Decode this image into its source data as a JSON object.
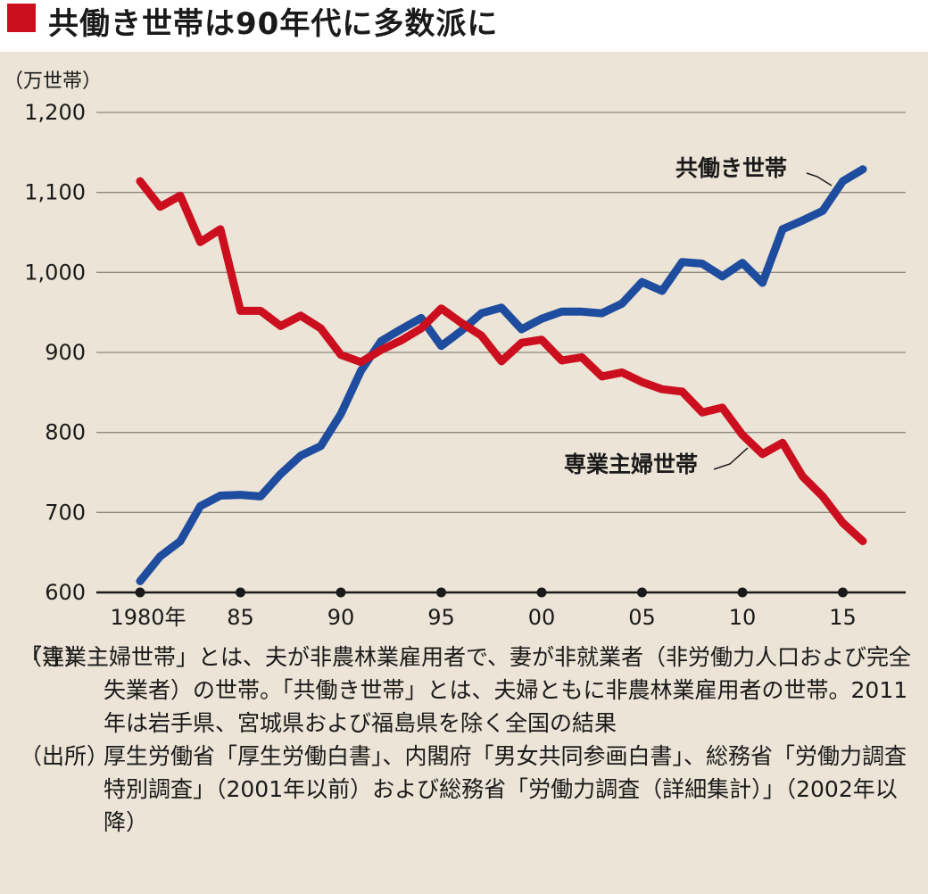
{
  "header": {
    "title": "共働き世帯は90年代に多数派に",
    "accent_color": "#cc0f1f"
  },
  "chart_data": {
    "type": "line",
    "title": "共働き世帯は90年代に多数派に",
    "ylabel": "（万世帯）",
    "xlabel": "",
    "ylim": [
      600,
      1200
    ],
    "xlim": [
      1979,
      2017
    ],
    "y_ticks": [
      600,
      700,
      800,
      900,
      1000,
      1100,
      1200
    ],
    "y_tick_labels": [
      "600",
      "700",
      "800",
      "900",
      "1,000",
      "1,100",
      "1,200"
    ],
    "x_ticks": [
      1980,
      1985,
      1990,
      1995,
      2000,
      2005,
      2010,
      2015
    ],
    "x_tick_labels": [
      "1980年",
      "85",
      "90",
      "95",
      "00",
      "05",
      "10",
      "15"
    ],
    "grid": true,
    "x": [
      1980,
      1981,
      1982,
      1983,
      1984,
      1985,
      1986,
      1987,
      1988,
      1989,
      1990,
      1991,
      1992,
      1993,
      1994,
      1995,
      1996,
      1997,
      1998,
      1999,
      2000,
      2001,
      2002,
      2003,
      2004,
      2005,
      2006,
      2007,
      2008,
      2009,
      2010,
      2011,
      2012,
      2013,
      2014,
      2015,
      2016
    ],
    "series": [
      {
        "name": "共働き世帯",
        "color": "#1e4c9e",
        "values": [
          614,
          645,
          664,
          708,
          721,
          722,
          720,
          748,
          771,
          783,
          823,
          877,
          914,
          929,
          943,
          908,
          927,
          949,
          956,
          929,
          942,
          951,
          951,
          949,
          961,
          988,
          977,
          1013,
          1011,
          995,
          1012,
          987,
          1054,
          1065,
          1077,
          1114,
          1129
        ]
      },
      {
        "name": "専業主婦世帯",
        "color": "#cc0f1f",
        "values": [
          1114,
          1082,
          1096,
          1038,
          1054,
          952,
          952,
          933,
          946,
          930,
          897,
          888,
          903,
          915,
          930,
          955,
          937,
          921,
          889,
          912,
          916,
          890,
          894,
          870,
          875,
          863,
          854,
          851,
          825,
          831,
          797,
          773,
          787,
          745,
          720,
          687,
          664
        ]
      }
    ],
    "annotations": [
      {
        "text": "共働き世帯",
        "series": "共働き世帯"
      },
      {
        "text": "専業主婦世帯",
        "series": "専業主婦世帯"
      }
    ]
  },
  "notes": {
    "note1_label": "（注）",
    "note1_lead": "「専業主婦世帯」とは、夫が非農林業雇用者で、妻が非就業者（非労働",
    "note1_rest": "力人口および完全失業者）の世帯。「共働き世帯」とは、夫婦ともに非農林業雇用者の世帯。2011年は岩手県、宮城県および福島県を除く全国の結果",
    "note2_label": "（出所）",
    "note2_text": "厚生労働省「厚生労働白書」、内閣府「男女共同参画白書」、総務省「労働力調査特別調査」（2001年以前）および総務省「労働力調査（詳細集計）」（2002年以降）"
  }
}
